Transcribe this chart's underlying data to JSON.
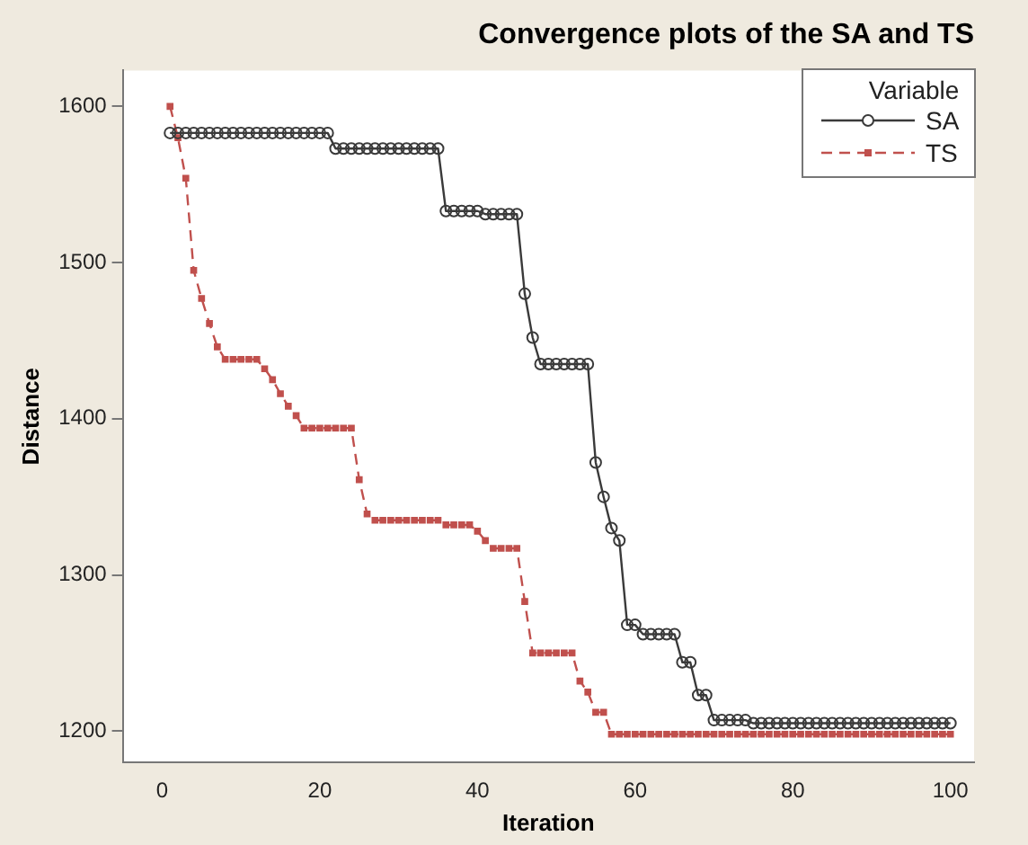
{
  "chart_data": {
    "type": "line",
    "title": "Convergence plots of the SA and TS",
    "xlabel": "Iteration",
    "ylabel": "Distance",
    "legend_title": "Variable",
    "legend": "top right",
    "grid": false,
    "x": [
      1,
      2,
      3,
      4,
      5,
      6,
      7,
      8,
      9,
      10,
      11,
      12,
      13,
      14,
      15,
      16,
      17,
      18,
      19,
      20,
      21,
      22,
      23,
      24,
      25,
      26,
      27,
      28,
      29,
      30,
      31,
      32,
      33,
      34,
      35,
      36,
      37,
      38,
      39,
      40,
      41,
      42,
      43,
      44,
      45,
      46,
      47,
      48,
      49,
      50,
      51,
      52,
      53,
      54,
      55,
      56,
      57,
      58,
      59,
      60,
      61,
      62,
      63,
      64,
      65,
      66,
      67,
      68,
      69,
      70,
      71,
      72,
      73,
      74,
      75,
      76,
      77,
      78,
      79,
      80,
      81,
      82,
      83,
      84,
      85,
      86,
      87,
      88,
      89,
      90,
      91,
      92,
      93,
      94,
      95,
      96,
      97,
      98,
      99,
      100
    ],
    "xlim": [
      -5,
      103
    ],
    "xticks": [
      0,
      20,
      40,
      60,
      80,
      100
    ],
    "ylim": [
      1180,
      1623
    ],
    "yticks": [
      1200,
      1300,
      1400,
      1500,
      1600
    ],
    "series": [
      {
        "name": "SA",
        "color": "#3a3a3a",
        "marker": "circle",
        "line_style": "solid",
        "values": [
          1583,
          1583,
          1583,
          1583,
          1583,
          1583,
          1583,
          1583,
          1583,
          1583,
          1583,
          1583,
          1583,
          1583,
          1583,
          1583,
          1583,
          1583,
          1583,
          1583,
          1583,
          1573,
          1573,
          1573,
          1573,
          1573,
          1573,
          1573,
          1573,
          1573,
          1573,
          1573,
          1573,
          1573,
          1573,
          1533,
          1533,
          1533,
          1533,
          1533,
          1531,
          1531,
          1531,
          1531,
          1531,
          1480,
          1452,
          1435,
          1435,
          1435,
          1435,
          1435,
          1435,
          1435,
          1372,
          1350,
          1330,
          1322,
          1268,
          1268,
          1262,
          1262,
          1262,
          1262,
          1262,
          1244,
          1244,
          1223,
          1223,
          1207,
          1207,
          1207,
          1207,
          1207,
          1205,
          1205,
          1205,
          1205,
          1205,
          1205,
          1205,
          1205,
          1205,
          1205,
          1205,
          1205,
          1205,
          1205,
          1205,
          1205,
          1205,
          1205,
          1205,
          1205,
          1205,
          1205,
          1205,
          1205,
          1205,
          1205
        ]
      },
      {
        "name": "TS",
        "color": "#c0504d",
        "marker": "square",
        "line_style": "dashed",
        "values": [
          1600,
          1580,
          1554,
          1495,
          1477,
          1461,
          1446,
          1438,
          1438,
          1438,
          1438,
          1438,
          1432,
          1425,
          1416,
          1408,
          1402,
          1394,
          1394,
          1394,
          1394,
          1394,
          1394,
          1394,
          1361,
          1339,
          1335,
          1335,
          1335,
          1335,
          1335,
          1335,
          1335,
          1335,
          1335,
          1332,
          1332,
          1332,
          1332,
          1328,
          1322,
          1317,
          1317,
          1317,
          1317,
          1283,
          1250,
          1250,
          1250,
          1250,
          1250,
          1250,
          1232,
          1225,
          1212,
          1212,
          1198,
          1198,
          1198,
          1198,
          1198,
          1198,
          1198,
          1198,
          1198,
          1198,
          1198,
          1198,
          1198,
          1198,
          1198,
          1198,
          1198,
          1198,
          1198,
          1198,
          1198,
          1198,
          1198,
          1198,
          1198,
          1198,
          1198,
          1198,
          1198,
          1198,
          1198,
          1198,
          1198,
          1198,
          1198,
          1198,
          1198,
          1198,
          1198,
          1198,
          1198,
          1198,
          1198,
          1198
        ]
      }
    ]
  }
}
